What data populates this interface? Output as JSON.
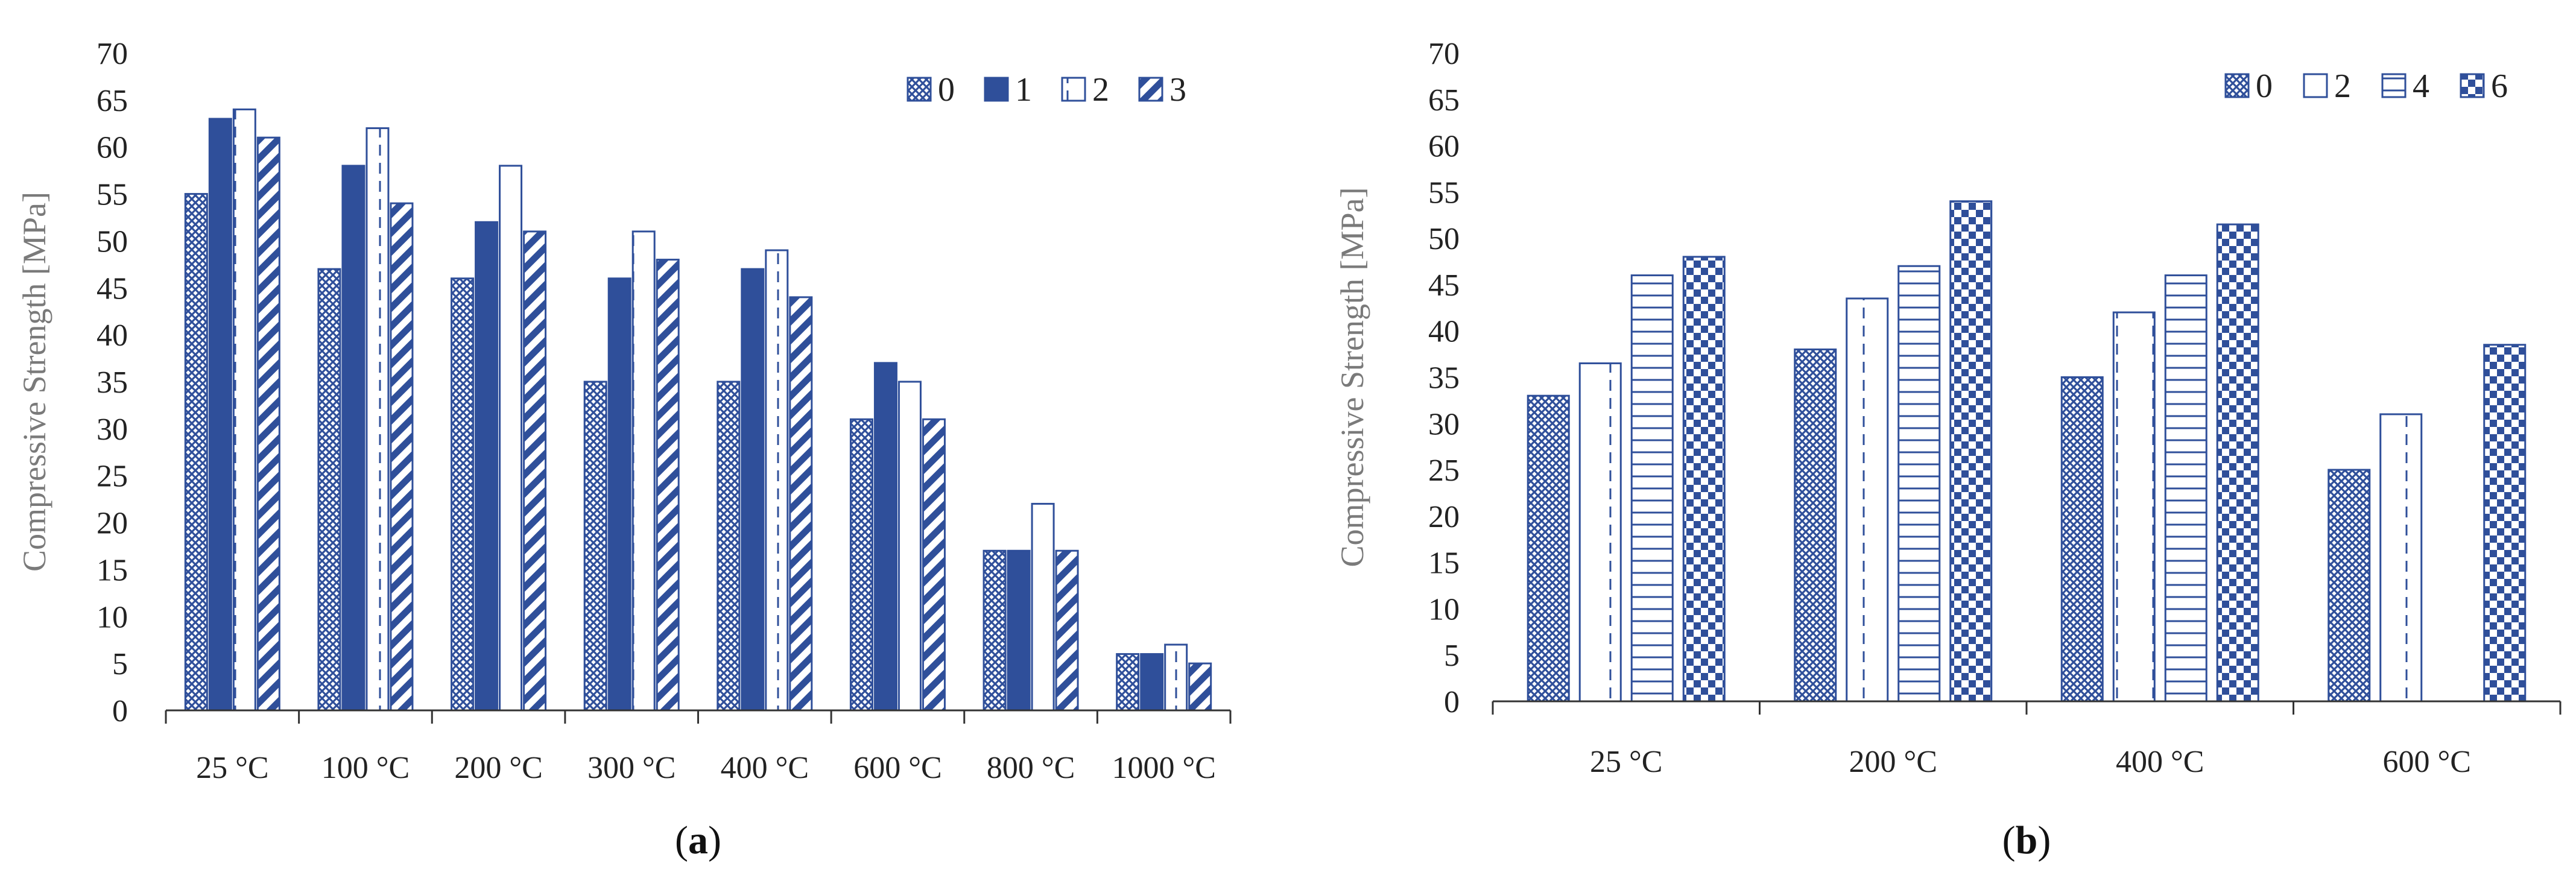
{
  "colors": {
    "navy": "#2f4f9a",
    "axis": "#333333",
    "label_gray": "#7a7a7a"
  },
  "chart_data": [
    {
      "type": "bar",
      "panel_label": "(a)",
      "ylabel": "Compressive Strength [MPa]",
      "xlabel": "",
      "ylim": [
        0,
        70
      ],
      "ytick_step": 5,
      "legend_position": "top-right",
      "categories": [
        "25 °C",
        "100 °C",
        "200 °C",
        "300 °C",
        "400 °C",
        "600 °C",
        "800 °C",
        "1000 °C"
      ],
      "series": [
        {
          "name": "0",
          "pattern": "crosshatch",
          "values": [
            55,
            47,
            46,
            35,
            35,
            31,
            17,
            6
          ]
        },
        {
          "name": "1",
          "pattern": "solid",
          "values": [
            63,
            58,
            52,
            46,
            47,
            37,
            17,
            6
          ]
        },
        {
          "name": "2",
          "pattern": "dashed-vertical",
          "values": [
            64,
            62,
            58,
            51,
            49,
            35,
            22,
            7
          ]
        },
        {
          "name": "3",
          "pattern": "diagonal",
          "values": [
            61,
            54,
            51,
            48,
            44,
            31,
            17,
            5
          ]
        }
      ]
    },
    {
      "type": "bar",
      "panel_label": "(b)",
      "ylabel": "Compressive Strength [MPa]",
      "xlabel": "",
      "ylim": [
        0,
        70
      ],
      "ytick_step": 5,
      "legend_position": "top-right",
      "categories": [
        "25 °C",
        "200 °C",
        "400 °C",
        "600 °C"
      ],
      "series": [
        {
          "name": "0",
          "pattern": "crosshatch",
          "values": [
            33,
            38,
            35,
            25
          ]
        },
        {
          "name": "2",
          "pattern": "dashed-vertical",
          "values": [
            36.5,
            43.5,
            42,
            31
          ]
        },
        {
          "name": "4",
          "pattern": "horizontal",
          "values": [
            46,
            47,
            46,
            0
          ]
        },
        {
          "name": "6",
          "pattern": "checker",
          "values": [
            48,
            54,
            51.5,
            38.5
          ]
        }
      ]
    }
  ]
}
